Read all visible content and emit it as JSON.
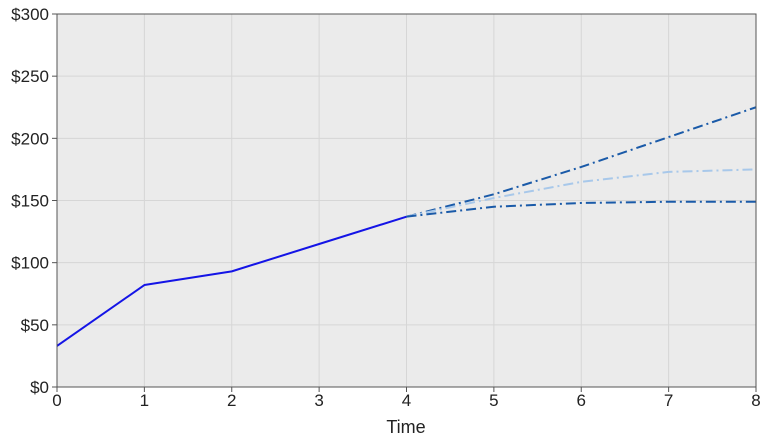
{
  "chart_data": {
    "type": "line",
    "xlabel": "Time",
    "ylabel": "",
    "title": "",
    "xlim": [
      0,
      8
    ],
    "ylim": [
      0,
      300
    ],
    "x_ticks": [
      "0",
      "1",
      "2",
      "3",
      "4",
      "5",
      "6",
      "7",
      "8"
    ],
    "y_ticks": [
      "$0",
      "$50",
      "$100",
      "$150",
      "$200",
      "$250",
      "$300"
    ],
    "grid": true,
    "legend": "none",
    "colors": {
      "plot_background": "#ebebeb",
      "grid": "#d6d6d6",
      "axis": "#555555",
      "historical": "#1414e6",
      "projection_dark": "#1a5aa8",
      "projection_light": "#a8c8ea"
    },
    "series": [
      {
        "style": "solid",
        "color_key": "historical",
        "x": [
          0,
          1,
          2,
          3,
          4
        ],
        "y": [
          33,
          82,
          93,
          115,
          137
        ]
      },
      {
        "style": "dashdot",
        "color_key": "projection_dark",
        "x": [
          4,
          5,
          6,
          7,
          8
        ],
        "y": [
          137,
          155,
          177,
          201,
          225
        ]
      },
      {
        "style": "dashdot",
        "color_key": "projection_light",
        "x": [
          4,
          5,
          6,
          7,
          8
        ],
        "y": [
          137,
          152,
          165,
          173,
          175
        ]
      },
      {
        "style": "dashdot",
        "color_key": "projection_dark",
        "x": [
          4,
          5,
          6,
          7,
          8
        ],
        "y": [
          137,
          145,
          148,
          149,
          149
        ]
      }
    ]
  }
}
